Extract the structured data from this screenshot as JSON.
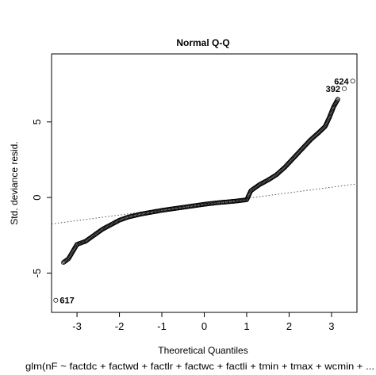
{
  "chart_data": {
    "type": "scatter",
    "title": "Normal Q-Q",
    "xlabel": "Theoretical Quantiles",
    "ylabel": "Std. deviance resid.",
    "caption": "glm(nF ~ factdc + factwd + factlr + factwc + factli + tmin + tmax + wcmin + ...",
    "xlim": [
      -3.6,
      3.6
    ],
    "ylim": [
      -7.6,
      9.5
    ],
    "x_ticks": [
      -3,
      -2,
      -1,
      0,
      1,
      2,
      3
    ],
    "y_ticks": [
      -5,
      0,
      5
    ],
    "grid": false,
    "reference_line": {
      "style": "dotted",
      "points": [
        [
          -3.6,
          -1.75
        ],
        [
          3.6,
          0.9
        ]
      ]
    },
    "curve": [
      [
        -3.32,
        -4.3
      ],
      [
        -3.2,
        -4.05
      ],
      [
        -3.0,
        -3.1
      ],
      [
        -2.9,
        -3.0
      ],
      [
        -2.8,
        -2.9
      ],
      [
        -2.6,
        -2.5
      ],
      [
        -2.4,
        -2.1
      ],
      [
        -2.2,
        -1.8
      ],
      [
        -2.0,
        -1.5
      ],
      [
        -1.8,
        -1.3
      ],
      [
        -1.5,
        -1.1
      ],
      [
        -1.2,
        -0.95
      ],
      [
        -1.0,
        -0.85
      ],
      [
        -0.5,
        -0.65
      ],
      [
        0.0,
        -0.45
      ],
      [
        0.3,
        -0.35
      ],
      [
        0.7,
        -0.25
      ],
      [
        1.0,
        -0.15
      ],
      [
        1.1,
        0.45
      ],
      [
        1.3,
        0.85
      ],
      [
        1.5,
        1.15
      ],
      [
        1.7,
        1.5
      ],
      [
        1.9,
        2.0
      ],
      [
        2.1,
        2.6
      ],
      [
        2.3,
        3.2
      ],
      [
        2.5,
        3.8
      ],
      [
        2.7,
        4.3
      ],
      [
        2.85,
        4.7
      ],
      [
        2.95,
        5.3
      ],
      [
        3.05,
        6.0
      ],
      [
        3.15,
        6.5
      ]
    ],
    "labeled_points": [
      {
        "label": "624",
        "x": 3.5,
        "y": 7.7
      },
      {
        "label": "392",
        "x": 3.3,
        "y": 7.2
      },
      {
        "label": "617",
        "x": -3.5,
        "y": -6.8
      }
    ]
  }
}
